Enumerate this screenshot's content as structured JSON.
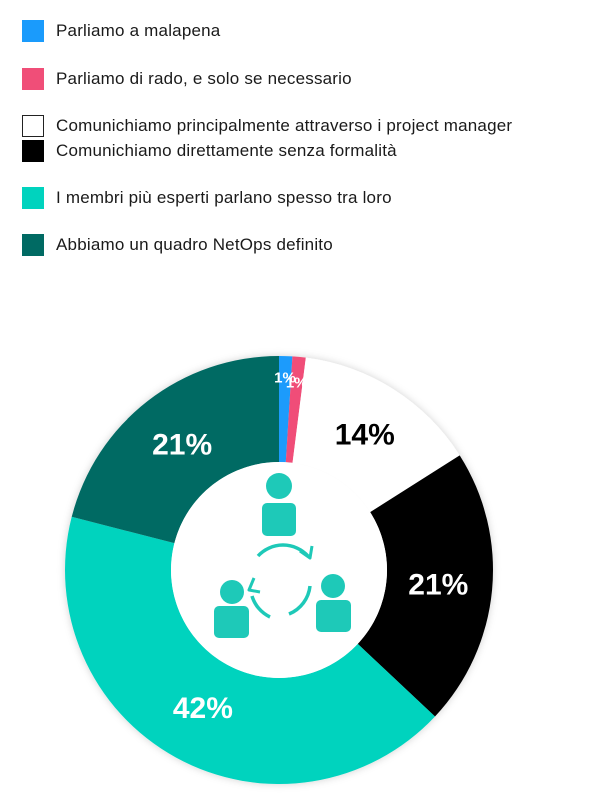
{
  "chart_data": {
    "type": "pie",
    "donut": true,
    "series": [
      {
        "name": "Parliamo a malapena",
        "value": 1,
        "label": "1%",
        "color": "#1a9bfc",
        "label_color": "#ffffff"
      },
      {
        "name": "Parliamo di rado, e solo se necessario",
        "value": 1,
        "label": "1%",
        "color": "#f04e78",
        "label_color": "#ffffff"
      },
      {
        "name": "Comunichiamo principalmente attraverso i project manager",
        "value": 14,
        "label": "14%",
        "color": "#ffffff",
        "label_color": "#000000"
      },
      {
        "name": "Comunichiamo direttamente senza formalità",
        "value": 21,
        "label": "21%",
        "color": "#000000",
        "label_color": "#ffffff"
      },
      {
        "name": "I membri più esperti parlano spesso tra loro",
        "value": 42,
        "label": "42%",
        "color": "#00d3be",
        "label_color": "#ffffff"
      },
      {
        "name": "Abbiamo un quadro NetOps definito",
        "value": 21,
        "label": "21%",
        "color": "#006a63",
        "label_color": "#ffffff"
      }
    ],
    "legend_position": "top",
    "center_icon": "team-communication-icon",
    "icon_color": "#1ec9b8"
  }
}
